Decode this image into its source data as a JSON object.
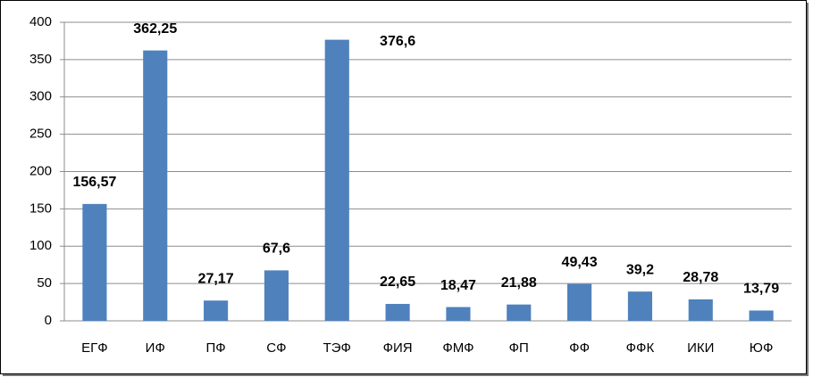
{
  "chart_data": {
    "type": "bar",
    "categories": [
      "ЕГФ",
      "ИФ",
      "ПФ",
      "СФ",
      "ТЭФ",
      "ФИЯ",
      "ФМФ",
      "ФП",
      "ФФ",
      "ФФК",
      "ИКИ",
      "ЮФ"
    ],
    "values": [
      156.57,
      362.25,
      27.17,
      67.6,
      376.6,
      22.65,
      18.47,
      21.88,
      49.43,
      39.2,
      28.78,
      13.79
    ],
    "value_labels": [
      "156,57",
      "362,25",
      "27,17",
      "67,6",
      "376,6",
      "22,65",
      "18,47",
      "21,88",
      "49,43",
      "39,2",
      "28,78",
      "13,79"
    ],
    "color": "#4f81bd",
    "ylim": [
      0,
      400
    ],
    "yticks": [
      0,
      50,
      100,
      150,
      200,
      250,
      300,
      350,
      400
    ],
    "grid": true
  }
}
